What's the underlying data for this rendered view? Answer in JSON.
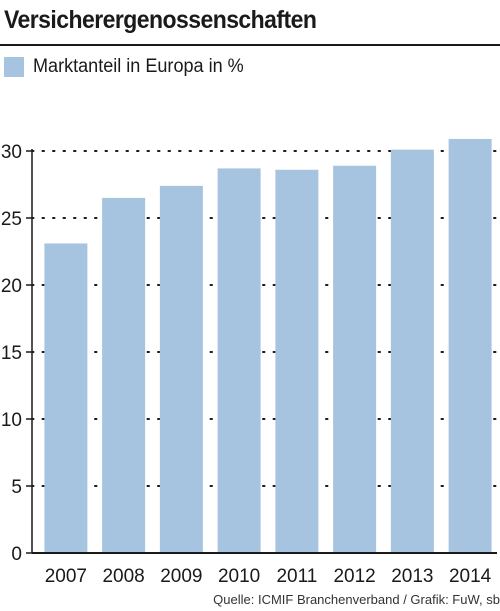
{
  "chart_data": {
    "type": "bar",
    "title": "Versicherergenossenschaften",
    "categories": [
      "2007",
      "2008",
      "2009",
      "2010",
      "2011",
      "2012",
      "2013",
      "2014"
    ],
    "series": [
      {
        "name": "Marktanteil in Europa in %",
        "values": [
          23.1,
          26.5,
          27.4,
          28.7,
          28.6,
          28.9,
          30.1,
          30.9
        ]
      }
    ],
    "ylim": [
      0,
      30
    ],
    "yticks": [
      "0",
      "5",
      "10",
      "15",
      "20",
      "25",
      "30"
    ],
    "grid": true,
    "legend": "top-left",
    "bar_color": "#a6c3df",
    "source": "Quelle: ICMIF Branchenverband  / Grafik: FuW, sb"
  }
}
